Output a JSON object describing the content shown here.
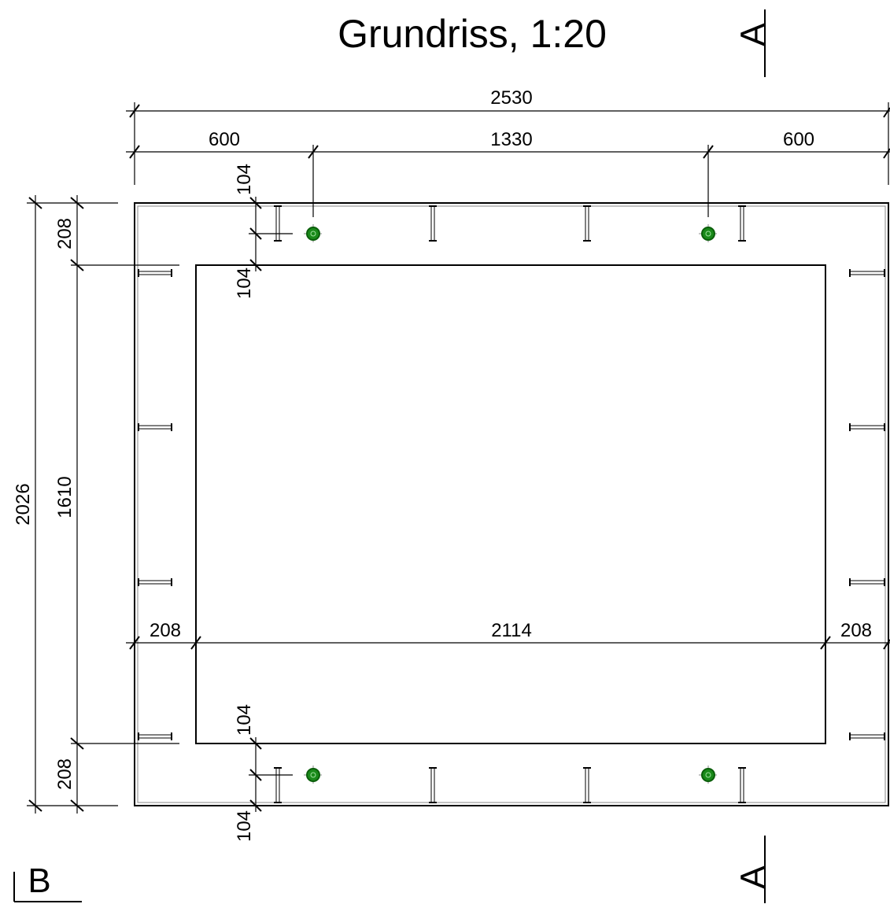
{
  "title": "Grundriss, 1:20",
  "section_marks": {
    "a_top": "A",
    "a_bottom": "A",
    "b": "B"
  },
  "dimensions": {
    "overall_width": "2530",
    "left_span": "600",
    "middle_span": "1330",
    "right_span": "600",
    "overall_height": "2026",
    "inner_height": "1610",
    "top_band": "208",
    "bottom_band": "208",
    "left_band": "208",
    "inner_width": "2114",
    "right_band": "208",
    "top_offset_a": "104",
    "top_offset_b": "104",
    "bottom_offset_a": "104",
    "bottom_offset_b": "104"
  },
  "colors": {
    "line": "#000000",
    "anchor_fill": "#1a8a1a",
    "anchor_ring": "#0b5e0b"
  }
}
